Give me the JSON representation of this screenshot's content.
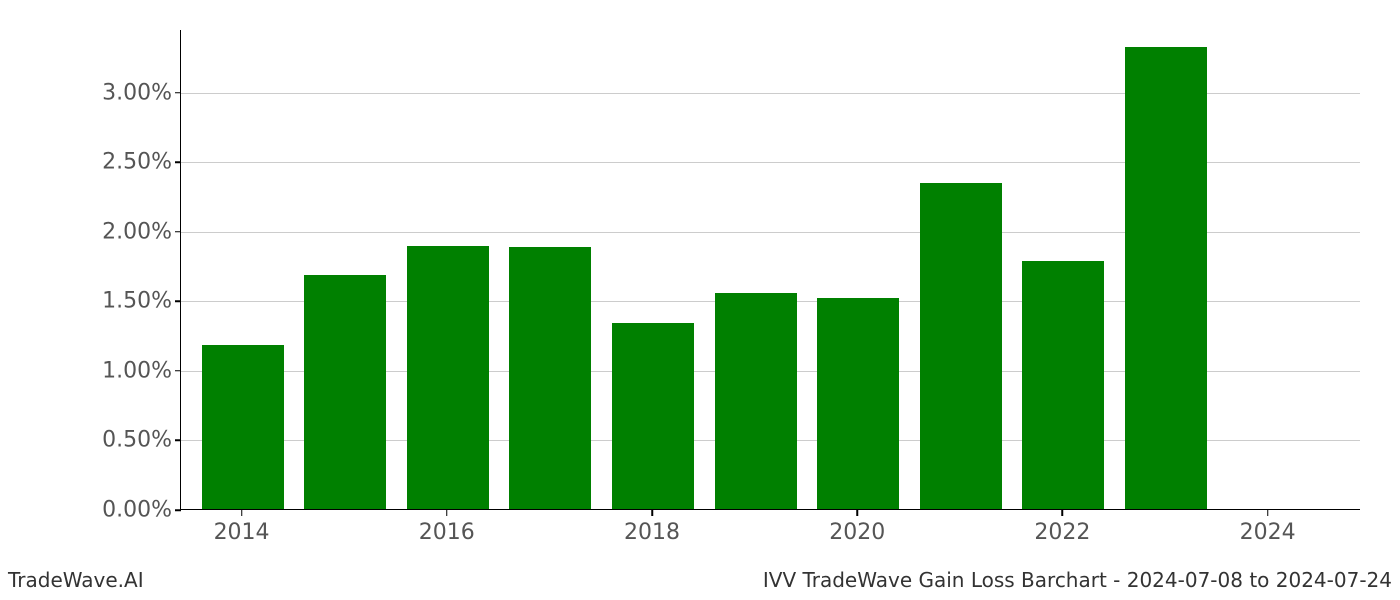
{
  "chart": {
    "type": "bar",
    "years": [
      2014,
      2015,
      2016,
      2017,
      2018,
      2019,
      2020,
      2021,
      2022,
      2023,
      2024
    ],
    "values": [
      1.18,
      1.68,
      1.89,
      1.88,
      1.34,
      1.55,
      1.52,
      2.34,
      1.78,
      3.32,
      0.0
    ],
    "bar_color": "#008000",
    "background_color": "#ffffff",
    "grid_color": "#cccccc",
    "axis_color": "#000000",
    "tick_label_color": "#555555",
    "ylim_min": 0.0,
    "ylim_max": 3.45,
    "y_ticks": [
      0.0,
      0.5,
      1.0,
      1.5,
      2.0,
      2.5,
      3.0
    ],
    "y_tick_labels": [
      "0.00%",
      "0.50%",
      "1.00%",
      "1.50%",
      "2.00%",
      "2.50%",
      "3.00%"
    ],
    "x_ticks": [
      2014,
      2016,
      2018,
      2020,
      2022,
      2024
    ],
    "x_tick_labels": [
      "2014",
      "2016",
      "2018",
      "2020",
      "2022",
      "2024"
    ],
    "bar_width": 0.8,
    "tick_fontsize": 22,
    "footer_fontsize": 20,
    "footer_color": "#333333"
  },
  "footer": {
    "left": "TradeWave.AI",
    "right": "IVV TradeWave Gain Loss Barchart - 2024-07-08 to 2024-07-24"
  }
}
